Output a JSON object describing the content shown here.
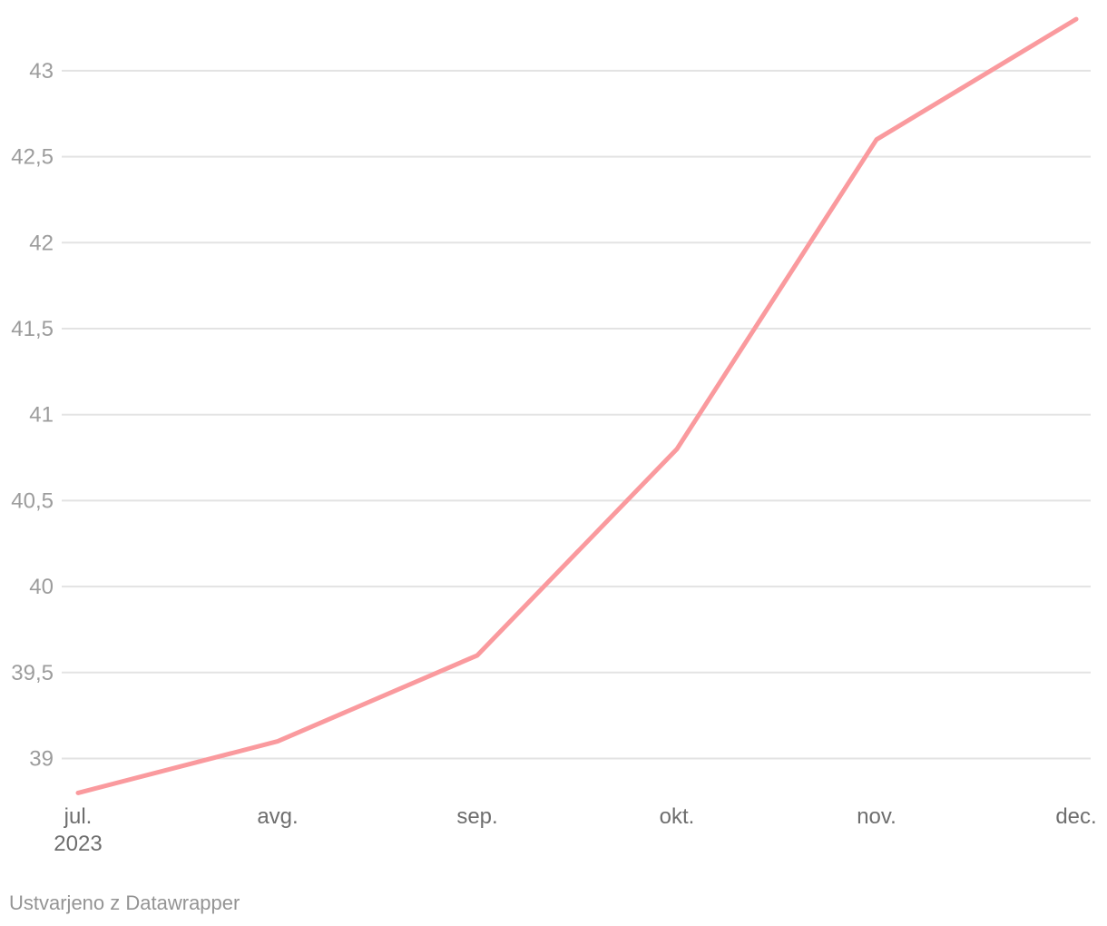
{
  "chart_data": {
    "type": "line",
    "categories": [
      "jul. 2023",
      "avg.",
      "sep.",
      "okt.",
      "nov.",
      "dec."
    ],
    "values": [
      38.8,
      39.1,
      39.6,
      40.8,
      42.6,
      43.3
    ],
    "series": [
      {
        "name": "series-1",
        "values": [
          38.8,
          39.1,
          39.6,
          40.8,
          42.6,
          43.3
        ]
      }
    ],
    "title": "",
    "xlabel": "",
    "ylabel": "",
    "ylim": [
      38.75,
      43.35
    ],
    "grid": true,
    "legend_position": "none",
    "y_ticks": [
      {
        "value": 39,
        "label": "39"
      },
      {
        "value": 39.5,
        "label": "39,5"
      },
      {
        "value": 40,
        "label": "40"
      },
      {
        "value": 40.5,
        "label": "40,5"
      },
      {
        "value": 41,
        "label": "41"
      },
      {
        "value": 41.5,
        "label": "41,5"
      },
      {
        "value": 42,
        "label": "42"
      },
      {
        "value": 42.5,
        "label": "42,5"
      },
      {
        "value": 43,
        "label": "43"
      }
    ],
    "x_tick_labels": [
      {
        "label": "jul.",
        "sublabel": "2023"
      },
      {
        "label": "avg."
      },
      {
        "label": "sep."
      },
      {
        "label": "okt."
      },
      {
        "label": "nov."
      },
      {
        "label": "dec."
      }
    ],
    "colors": {
      "line": "#fa9a9e",
      "gridline": "#e3e3e3",
      "y_label": "#9c9c9c",
      "x_label": "#6e6e6e"
    }
  },
  "footer": {
    "text": "Ustvarjeno z Datawrapper",
    "color": "#949494"
  }
}
